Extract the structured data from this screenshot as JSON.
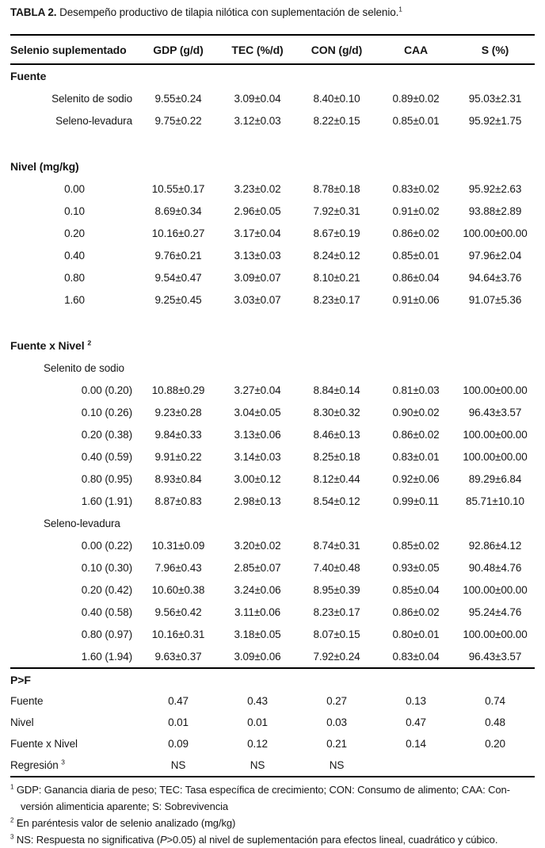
{
  "colors": {
    "text": "#161616",
    "rule": "#000000",
    "background": "#ffffff"
  },
  "title": {
    "label": "TABLA 2.",
    "text": "Desempeño productivo de tilapia nilótica con suplementación de selenio.",
    "superscript": "1"
  },
  "table": {
    "columns": [
      "Selenio suplementado",
      "GDP (g/d)",
      "TEC (%/d)",
      "CON (g/d)",
      "CAA",
      "S (%)"
    ],
    "sections": [
      {
        "title": "Fuente",
        "rows": [
          {
            "label": "Selenito de sodio",
            "align": "lab-right",
            "values": [
              "9.55±0.24",
              "3.09±0.04",
              "8.40±0.10",
              "0.89±0.02",
              "95.03±2.31"
            ]
          },
          {
            "label": "Seleno-levadura",
            "align": "lab-right",
            "values": [
              "9.75±0.22",
              "3.12±0.03",
              "8.22±0.15",
              "0.85±0.01",
              "95.92±1.75"
            ]
          }
        ]
      },
      {
        "title": "Nivel (mg/kg)",
        "gap_before": true,
        "rows": [
          {
            "label": "0.00",
            "align": "lab-center",
            "values": [
              "10.55±0.17",
              "3.23±0.02",
              "8.78±0.18",
              "0.83±0.02",
              "95.92±2.63"
            ]
          },
          {
            "label": "0.10",
            "align": "lab-center",
            "values": [
              "8.69±0.34",
              "2.96±0.05",
              "7.92±0.31",
              "0.91±0.02",
              "93.88±2.89"
            ]
          },
          {
            "label": "0.20",
            "align": "lab-center",
            "values": [
              "10.16±0.27",
              "3.17±0.04",
              "8.67±0.19",
              "0.86±0.02",
              "100.00±00.00"
            ]
          },
          {
            "label": "0.40",
            "align": "lab-center",
            "values": [
              "9.76±0.21",
              "3.13±0.03",
              "8.24±0.12",
              "0.85±0.01",
              "97.96±2.04"
            ]
          },
          {
            "label": "0.80",
            "align": "lab-center",
            "values": [
              "9.54±0.47",
              "3.09±0.07",
              "8.10±0.21",
              "0.86±0.04",
              "94.64±3.76"
            ]
          },
          {
            "label": "1.60",
            "align": "lab-center",
            "values": [
              "9.25±0.45",
              "3.03±0.07",
              "8.23±0.17",
              "0.91±0.06",
              "91.07±5.36"
            ]
          }
        ]
      },
      {
        "title": "Fuente x Nivel",
        "title_sup": "2",
        "gap_before": true,
        "subsections": [
          {
            "subtitle": "Selenito de sodio",
            "rows": [
              {
                "label": "0.00 (0.20)",
                "align": "lab-right",
                "values": [
                  "10.88±0.29",
                  "3.27±0.04",
                  "8.84±0.14",
                  "0.81±0.03",
                  "100.00±00.00"
                ]
              },
              {
                "label": "0.10 (0.26)",
                "align": "lab-right",
                "values": [
                  "9.23±0.28",
                  "3.04±0.05",
                  "8.30±0.32",
                  "0.90±0.02",
                  "96.43±3.57"
                ]
              },
              {
                "label": "0.20 (0.38)",
                "align": "lab-right",
                "values": [
                  "9.84±0.33",
                  "3.13±0.06",
                  "8.46±0.13",
                  "0.86±0.02",
                  "100.00±00.00"
                ]
              },
              {
                "label": "0.40 (0.59)",
                "align": "lab-right",
                "values": [
                  "9.91±0.22",
                  "3.14±0.03",
                  "8.25±0.18",
                  "0.83±0.01",
                  "100.00±00.00"
                ]
              },
              {
                "label": "0.80 (0.95)",
                "align": "lab-right",
                "values": [
                  "8.93±0.84",
                  "3.00±0.12",
                  "8.12±0.44",
                  "0.92±0.06",
                  "89.29±6.84"
                ]
              },
              {
                "label": "1.60 (1.91)",
                "align": "lab-right",
                "values": [
                  "8.87±0.83",
                  "2.98±0.13",
                  "8.54±0.12",
                  "0.99±0.11",
                  "85.71±10.10"
                ]
              }
            ]
          },
          {
            "subtitle": "Seleno-levadura",
            "rows": [
              {
                "label": "0.00 (0.22)",
                "align": "lab-right",
                "values": [
                  "10.31±0.09",
                  "3.20±0.02",
                  "8.74±0.31",
                  "0.85±0.02",
                  "92.86±4.12"
                ]
              },
              {
                "label": "0.10 (0.30)",
                "align": "lab-right",
                "values": [
                  "7.96±0.43",
                  "2.85±0.07",
                  "7.40±0.48",
                  "0.93±0.05",
                  "90.48±4.76"
                ]
              },
              {
                "label": "0.20 (0.42)",
                "align": "lab-right",
                "values": [
                  "10.60±0.38",
                  "3.24±0.06",
                  "8.95±0.39",
                  "0.85±0.04",
                  "100.00±00.00"
                ]
              },
              {
                "label": "0.40 (0.58)",
                "align": "lab-right",
                "values": [
                  "9.56±0.42",
                  "3.11±0.06",
                  "8.23±0.17",
                  "0.86±0.02",
                  "95.24±4.76"
                ]
              },
              {
                "label": "0.80 (0.97)",
                "align": "lab-right",
                "values": [
                  "10.16±0.31",
                  "3.18±0.05",
                  "8.07±0.15",
                  "0.80±0.01",
                  "100.00±00.00"
                ]
              },
              {
                "label": "1.60 (1.94)",
                "align": "lab-right",
                "values": [
                  "9.63±0.37",
                  "3.09±0.06",
                  "7.92±0.24",
                  "0.83±0.04",
                  "96.43±3.57"
                ]
              }
            ]
          }
        ]
      },
      {
        "title": "P>F",
        "rule_before": true,
        "compact": true,
        "rows": [
          {
            "label": "Fuente",
            "align": "lab-left",
            "values": [
              "0.47",
              "0.43",
              "0.27",
              "0.13",
              "0.74"
            ]
          },
          {
            "label": "Nivel",
            "align": "lab-left",
            "values": [
              "0.01",
              "0.01",
              "0.03",
              "0.47",
              "0.48"
            ]
          },
          {
            "label": "Fuente x Nivel",
            "align": "lab-left",
            "values": [
              "0.09",
              "0.12",
              "0.21",
              "0.14",
              "0.20"
            ]
          },
          {
            "label": "Regresión",
            "label_sup": "3",
            "align": "lab-left",
            "values": [
              "NS",
              "NS",
              "NS",
              "",
              ""
            ]
          }
        ]
      }
    ]
  },
  "footnotes": [
    {
      "sup": "1",
      "lines": [
        [
          {
            "t": "GDP: Ganancia diaria de peso; TEC: Tasa específica de crecimiento; CON: Consumo de alimento; CAA: Con-"
          }
        ],
        [
          {
            "t": "versión alimenticia aparente; S: Sobrevivencia"
          }
        ]
      ]
    },
    {
      "sup": "2",
      "lines": [
        [
          {
            "t": "En paréntesis valor de selenio analizado (mg/kg)"
          }
        ]
      ]
    },
    {
      "sup": "3",
      "lines": [
        [
          {
            "t": "NS: Respuesta no significativa ("
          },
          {
            "t": "P",
            "i": true
          },
          {
            "t": ">0.05) al nivel de suplementación para efectos lineal, cuadrático y cúbico."
          }
        ]
      ]
    }
  ]
}
